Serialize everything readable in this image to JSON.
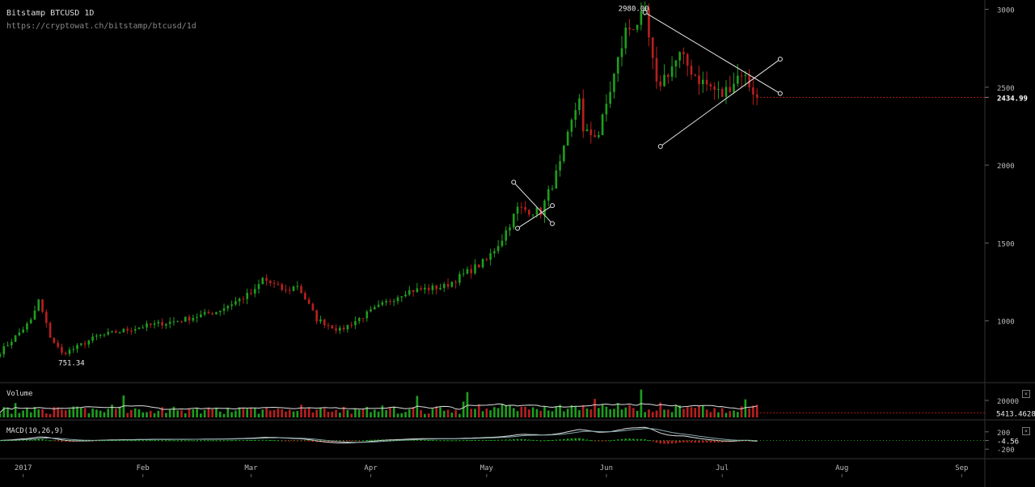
{
  "header": {
    "title": "Bitstamp BTCUSD 1D",
    "url": "https://cryptowat.ch/bitstamp/btcusd/1d"
  },
  "panels": {
    "volume_label": "Volume",
    "macd_label": "MACD(10,26,9)",
    "close_glyph": "×"
  },
  "colors": {
    "up": "#1e9e1e",
    "down": "#b81f1f",
    "line": "#dddddd",
    "bg": "#000000",
    "grid": "#1f1f1f"
  },
  "chart_data": [
    {
      "type": "candlestick",
      "title": "Bitstamp BTCUSD 1D",
      "y_ticks": [
        1000,
        1500,
        2000,
        2500,
        3000
      ],
      "ylim": [
        640,
        3060
      ],
      "x_tick_labels": [
        "2017",
        "Feb",
        "Mar",
        "Apr",
        "May",
        "Jun",
        "Jul",
        "Aug",
        "Sep"
      ],
      "x_range": [
        "2016-12-26",
        "2017-09-07"
      ],
      "last_price": "2434.99",
      "annotations": [
        {
          "text": "2980.00",
          "date": "2017-06-11",
          "value": 2980
        },
        {
          "text": "751.34",
          "date": "2017-01-11",
          "value": 751.34
        }
      ],
      "close_anchors": [
        [
          "2016-12-26",
          800
        ],
        [
          "2017-01-03",
          1000
        ],
        [
          "2017-01-05",
          1130
        ],
        [
          "2017-01-08",
          900
        ],
        [
          "2017-01-11",
          790
        ],
        [
          "2017-01-14",
          820
        ],
        [
          "2017-01-20",
          900
        ],
        [
          "2017-02-01",
          965
        ],
        [
          "2017-02-10",
          1000
        ],
        [
          "2017-02-20",
          1060
        ],
        [
          "2017-03-02",
          1190
        ],
        [
          "2017-03-04",
          1270
        ],
        [
          "2017-03-10",
          1190
        ],
        [
          "2017-03-13",
          1230
        ],
        [
          "2017-03-18",
          1010
        ],
        [
          "2017-03-24",
          940
        ],
        [
          "2017-04-01",
          1060
        ],
        [
          "2017-04-10",
          1190
        ],
        [
          "2017-04-20",
          1220
        ],
        [
          "2017-05-01",
          1390
        ],
        [
          "2017-05-05",
          1530
        ],
        [
          "2017-05-09",
          1720
        ],
        [
          "2017-05-15",
          1700
        ],
        [
          "2017-05-20",
          2000
        ],
        [
          "2017-05-25",
          2450
        ],
        [
          "2017-05-26",
          2200
        ],
        [
          "2017-05-30",
          2200
        ],
        [
          "2017-06-06",
          2860
        ],
        [
          "2017-06-11",
          2960
        ],
        [
          "2017-06-14",
          2500
        ],
        [
          "2017-06-17",
          2600
        ],
        [
          "2017-06-20",
          2700
        ],
        [
          "2017-06-25",
          2550
        ],
        [
          "2017-07-01",
          2450
        ],
        [
          "2017-07-06",
          2600
        ],
        [
          "2017-07-10",
          2435
        ]
      ],
      "drawings": [
        {
          "from": [
            "2017-05-08",
            1890
          ],
          "to": [
            "2017-05-18",
            1625
          ]
        },
        {
          "from": [
            "2017-05-09",
            1595
          ],
          "to": [
            "2017-05-18",
            1740
          ]
        },
        {
          "from": [
            "2017-06-11",
            2980
          ],
          "to": [
            "2017-07-16",
            2460
          ]
        },
        {
          "from": [
            "2017-06-15",
            2120
          ],
          "to": [
            "2017-07-16",
            2680
          ]
        }
      ]
    },
    {
      "type": "bar",
      "title": "Volume",
      "y_ticks": [
        20000
      ],
      "last_value": "5413.4628"
    },
    {
      "type": "line",
      "title": "MACD(10,26,9)",
      "y_ticks": [
        200,
        -200
      ],
      "last_value": "-4.56"
    }
  ]
}
